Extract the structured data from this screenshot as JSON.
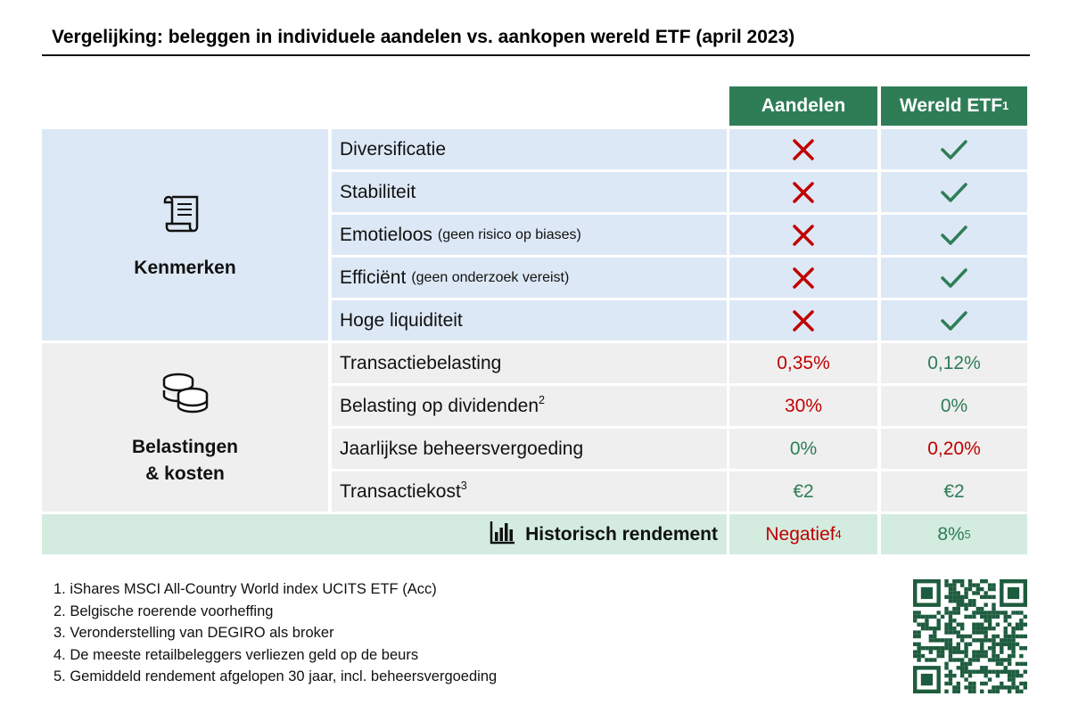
{
  "title": "Vergelijking: beleggen in individuele aandelen vs. aankopen wereld ETF (april 2023)",
  "columns": [
    {
      "text": "Aandelen"
    },
    {
      "text": "Wereld ETF",
      "sup": "1"
    }
  ],
  "sections": [
    {
      "title": [
        "Kenmerken"
      ],
      "icon": "scroll",
      "background": "#dce8f5",
      "rows": [
        {
          "label": "Diversificatie",
          "cells": [
            {
              "mark": "cross"
            },
            {
              "mark": "check"
            }
          ]
        },
        {
          "label": "Stabiliteit",
          "cells": [
            {
              "mark": "cross"
            },
            {
              "mark": "check"
            }
          ]
        },
        {
          "label": "Emotieloos",
          "note": "(geen risico op biases)",
          "cells": [
            {
              "mark": "cross"
            },
            {
              "mark": "check"
            }
          ]
        },
        {
          "label": "Efficiënt",
          "note": "(geen onderzoek vereist)",
          "cells": [
            {
              "mark": "cross"
            },
            {
              "mark": "check"
            }
          ]
        },
        {
          "label": "Hoge liquiditeit",
          "cells": [
            {
              "mark": "cross"
            },
            {
              "mark": "check"
            }
          ]
        }
      ]
    },
    {
      "title": [
        "Belastingen",
        "& kosten"
      ],
      "icon": "coins",
      "background": "#efefef",
      "rows": [
        {
          "label": "Transactiebelasting",
          "cells": [
            {
              "text": "0,35%",
              "color": "#c00000"
            },
            {
              "text": "0,12%",
              "color": "#2e7d57"
            }
          ]
        },
        {
          "label": "Belasting op dividenden",
          "sup": "2",
          "cells": [
            {
              "text": "30%",
              "color": "#c00000"
            },
            {
              "text": "0%",
              "color": "#2e7d57"
            }
          ]
        },
        {
          "label": "Jaarlijkse beheersvergoeding",
          "cells": [
            {
              "text": "0%",
              "color": "#2e7d57"
            },
            {
              "text": "0,20%",
              "color": "#c00000"
            }
          ]
        },
        {
          "label": "Transactiekost",
          "sup": "3",
          "cells": [
            {
              "text": "€2",
              "color": "#2e7d57"
            },
            {
              "text": "€2",
              "color": "#2e7d57"
            }
          ]
        }
      ]
    }
  ],
  "summary": {
    "label": "Historisch rendement",
    "background": "#d3ecdf",
    "cells": [
      {
        "text": "Negatief",
        "sup": "4",
        "color": "#c00000"
      },
      {
        "text": "8%",
        "sup": "5",
        "color": "#2e7d57"
      }
    ]
  },
  "footnotes": [
    "1. iShares MSCI All-Country World index UCITS ETF (Acc)",
    "2. Belgische roerende voorheffing",
    "3. Veronderstelling van DEGIRO als broker",
    "4. De meeste retailbeleggers verliezen geld op de beurs",
    "5. Gemiddeld rendement afgelopen 30 jaar, incl. beheersvergoeding"
  ]
}
